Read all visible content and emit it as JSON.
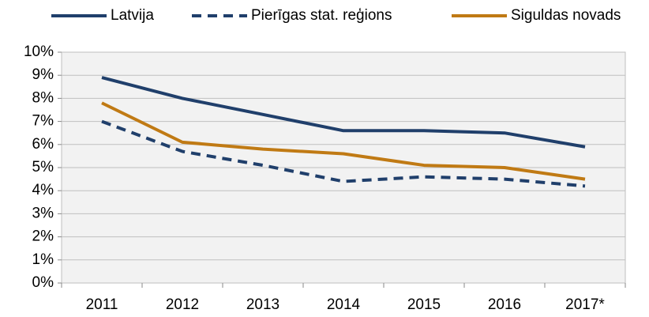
{
  "chart_data": {
    "type": "line",
    "categories": [
      "2011",
      "2012",
      "2013",
      "2014",
      "2015",
      "2016",
      "2017*"
    ],
    "series": [
      {
        "name": "Latvija",
        "color": "#203f6b",
        "linestyle": "solid",
        "values": [
          8.9,
          8.0,
          7.3,
          6.6,
          6.6,
          6.5,
          5.9
        ]
      },
      {
        "name": "Pierīgas stat. reģions",
        "color": "#203f6b",
        "linestyle": "dashed",
        "values": [
          7.0,
          5.7,
          5.1,
          4.4,
          4.6,
          4.5,
          4.2
        ]
      },
      {
        "name": "Siguldas novads",
        "color": "#c07a14",
        "linestyle": "solid",
        "values": [
          7.8,
          6.1,
          5.8,
          5.6,
          5.1,
          5.0,
          4.5
        ]
      }
    ],
    "ylim": [
      0,
      10
    ],
    "yticks": [
      {
        "value": 0,
        "label": "0%"
      },
      {
        "value": 1,
        "label": "1%"
      },
      {
        "value": 2,
        "label": "2%"
      },
      {
        "value": 3,
        "label": "3%"
      },
      {
        "value": 4,
        "label": "4%"
      },
      {
        "value": 5,
        "label": "5%"
      },
      {
        "value": 6,
        "label": "6%"
      },
      {
        "value": 7,
        "label": "7%"
      },
      {
        "value": 8,
        "label": "8%"
      },
      {
        "value": 9,
        "label": "9%"
      },
      {
        "value": 10,
        "label": "10%"
      }
    ],
    "grid": true,
    "legend": "top"
  }
}
